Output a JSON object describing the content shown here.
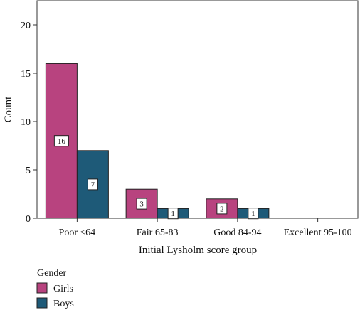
{
  "chart_data": {
    "type": "bar",
    "categories": [
      "Poor ≤64",
      "Fair 65-83",
      "Good 84-94",
      "Excellent 95-100"
    ],
    "series": [
      {
        "name": "Girls",
        "values": [
          16,
          3,
          2,
          0
        ],
        "color": "#b8437f"
      },
      {
        "name": "Boys",
        "values": [
          7,
          1,
          1,
          0
        ],
        "color": "#1e5a78"
      }
    ],
    "xlabel": "Initial Lysholm score group",
    "ylabel": "Count",
    "ylim": [
      0,
      22.5
    ],
    "yticks": [
      0,
      5,
      10,
      15,
      20
    ],
    "data_labels": true,
    "legend": {
      "title": "Gender",
      "position": "bottom-left"
    },
    "grid": false
  }
}
